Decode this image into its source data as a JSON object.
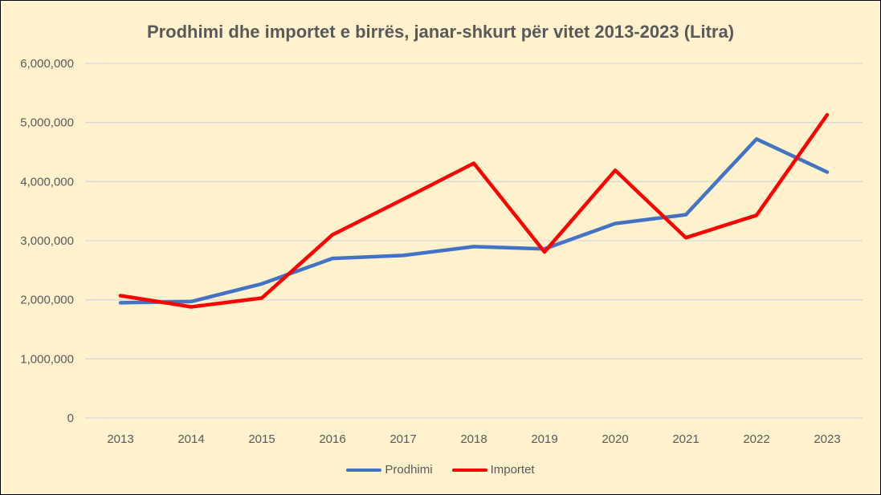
{
  "chart_data": {
    "type": "line",
    "title": "Prodhimi dhe importet e birrës, janar-shkurt për vitet 2013-2023 (Litra)",
    "xlabel": "",
    "ylabel": "",
    "categories": [
      "2013",
      "2014",
      "2015",
      "2016",
      "2017",
      "2018",
      "2019",
      "2020",
      "2021",
      "2022",
      "2023"
    ],
    "ylim": [
      0,
      6000000
    ],
    "yticks": [
      0,
      1000000,
      2000000,
      3000000,
      4000000,
      5000000,
      6000000
    ],
    "ytick_labels": [
      "0",
      "1,000,000",
      "2,000,000",
      "3,000,000",
      "4,000,000",
      "5,000,000",
      "6,000,000"
    ],
    "grid": true,
    "legend_position": "bottom",
    "series": [
      {
        "name": "Prodhimi",
        "color": "#4472c4",
        "values": [
          1950000,
          1970000,
          2270000,
          2700000,
          2750000,
          2900000,
          2860000,
          3290000,
          3440000,
          4720000,
          4160000
        ]
      },
      {
        "name": "Importet",
        "color": "#ff0000",
        "values": [
          2070000,
          1880000,
          2030000,
          3100000,
          3700000,
          4310000,
          2810000,
          4190000,
          3050000,
          3430000,
          5130000
        ]
      }
    ]
  }
}
